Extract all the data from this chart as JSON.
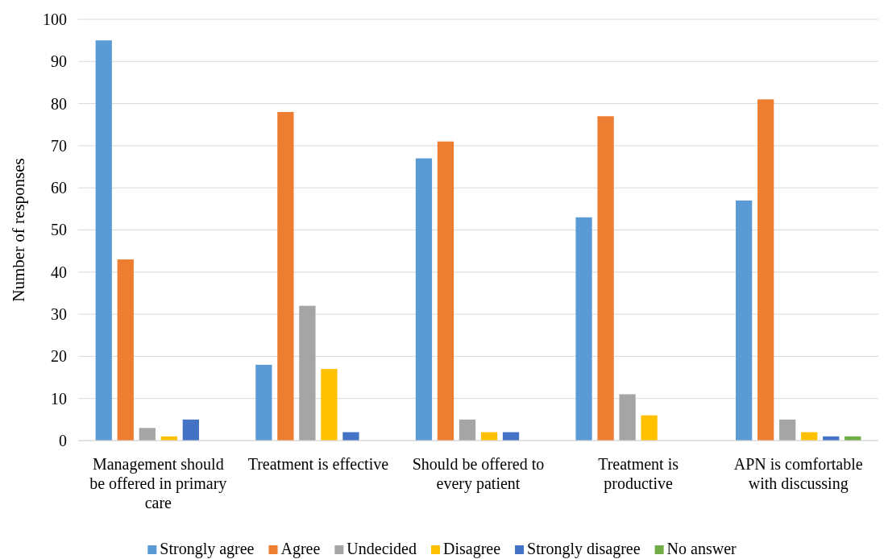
{
  "chart_data": {
    "type": "bar",
    "ylabel": "Number of responses",
    "categories": [
      "Management should be offered in primary care",
      "Treatment is effective",
      "Should be offered to every patient",
      "Treatment is productive",
      "APN is comfortable with discussing"
    ],
    "series": [
      {
        "name": "Strongly agree",
        "color": "#5b9bd5",
        "values": [
          95,
          18,
          67,
          53,
          57
        ]
      },
      {
        "name": "Agree",
        "color": "#ed7d31",
        "values": [
          43,
          78,
          71,
          77,
          81
        ]
      },
      {
        "name": "Undecided",
        "color": "#a5a5a5",
        "values": [
          3,
          32,
          5,
          11,
          5
        ]
      },
      {
        "name": "Disagree",
        "color": "#ffc000",
        "values": [
          1,
          17,
          2,
          6,
          2
        ]
      },
      {
        "name": "Strongly disagree",
        "color": "#4472c4",
        "values": [
          5,
          2,
          2,
          0,
          1
        ]
      },
      {
        "name": "No answer",
        "color": "#70ad47",
        "values": [
          0,
          0,
          0,
          0,
          1
        ]
      }
    ],
    "ylim": [
      0,
      100
    ],
    "yticks": [
      0,
      10,
      20,
      30,
      40,
      50,
      60,
      70,
      80,
      90,
      100
    ],
    "grid": "y",
    "legend": "bottom"
  }
}
